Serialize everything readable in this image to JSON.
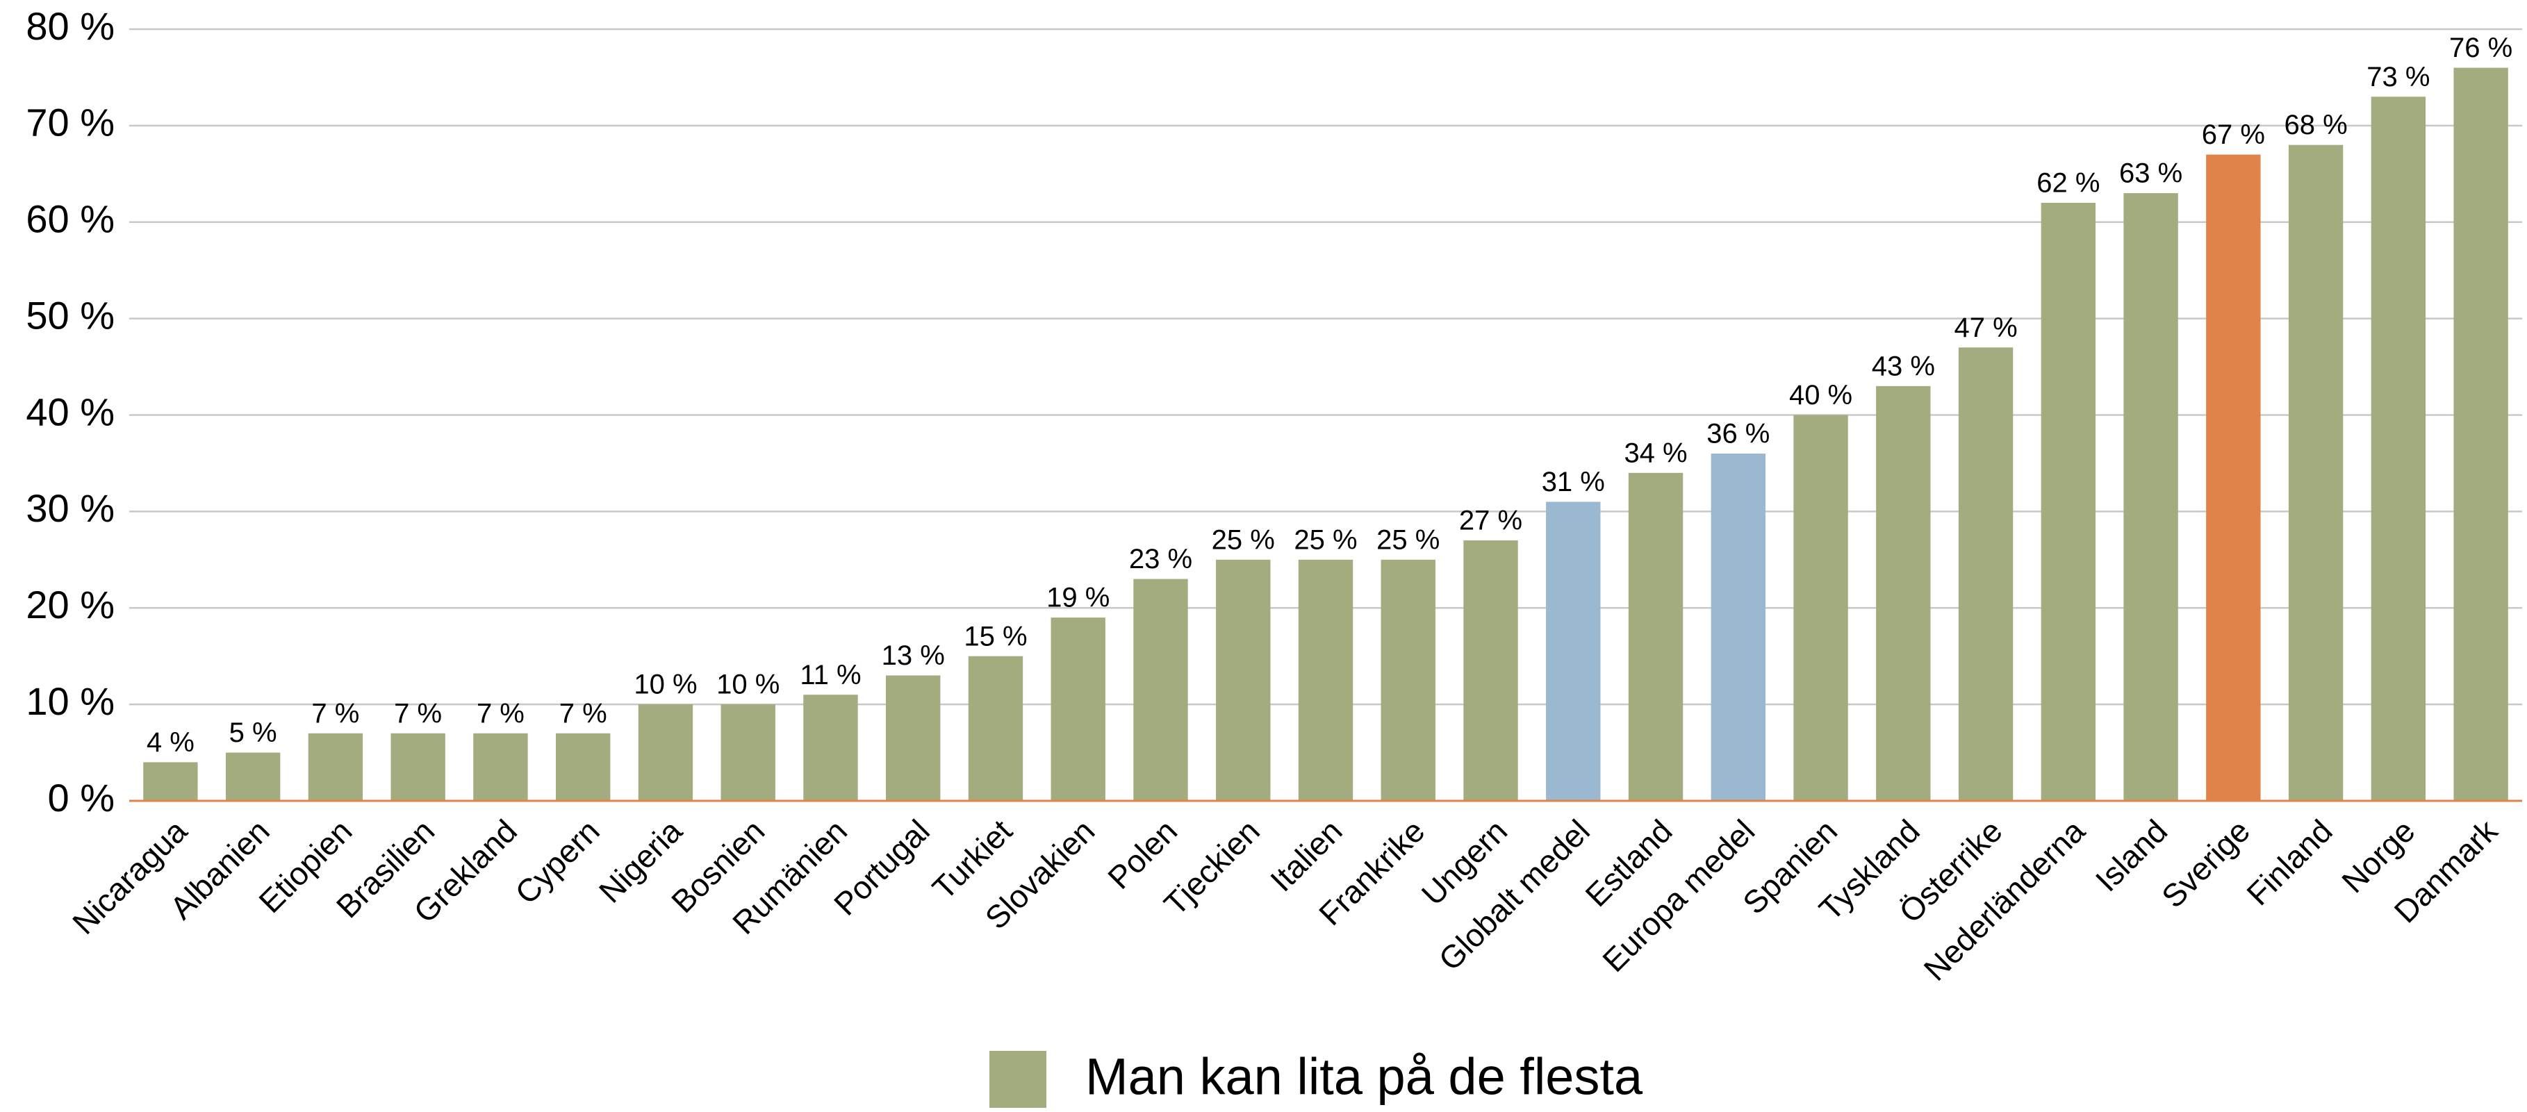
{
  "chart_data": {
    "type": "bar",
    "categories": [
      "Nicaragua",
      "Albanien",
      "Etiopien",
      "Brasilien",
      "Grekland",
      "Cypern",
      "Nigeria",
      "Bosnien",
      "Rumänien",
      "Portugal",
      "Turkiet",
      "Slovakien",
      "Polen",
      "Tjeckien",
      "Italien",
      "Frankrike",
      "Ungern",
      "Globalt medel",
      "Estland",
      "Europa medel",
      "Spanien",
      "Tyskland",
      "Österrike",
      "Nederländerna",
      "Island",
      "Sverige",
      "Finland",
      "Norge",
      "Danmark"
    ],
    "series": [
      {
        "name": "Man kan lita på de flesta",
        "color": "#a3ac7f",
        "values": [
          4,
          5,
          7,
          7,
          7,
          7,
          10,
          10,
          11,
          13,
          15,
          19,
          23,
          25,
          25,
          25,
          27,
          31,
          34,
          36,
          40,
          43,
          47,
          62,
          63,
          67,
          68,
          73,
          76
        ],
        "value_labels": [
          "4 %",
          "5 %",
          "7 %",
          "7 %",
          "7 %",
          "7 %",
          "10 %",
          "10 %",
          "11 %",
          "13 %",
          "15 %",
          "19 %",
          "23 %",
          "25 %",
          "25 %",
          "25 %",
          "27 %",
          "31 %",
          "34 %",
          "36 %",
          "40 %",
          "43 %",
          "47 %",
          "62 %",
          "63 %",
          "67 %",
          "68 %",
          "73 %",
          "76 %"
        ],
        "colors": [
          "#a3ac7f",
          "#a3ac7f",
          "#a3ac7f",
          "#a3ac7f",
          "#a3ac7f",
          "#a3ac7f",
          "#a3ac7f",
          "#a3ac7f",
          "#a3ac7f",
          "#a3ac7f",
          "#a3ac7f",
          "#a3ac7f",
          "#a3ac7f",
          "#a3ac7f",
          "#a3ac7f",
          "#a3ac7f",
          "#a3ac7f",
          "#9ab8cf",
          "#a3ac7f",
          "#9ab8cf",
          "#a3ac7f",
          "#a3ac7f",
          "#a3ac7f",
          "#a3ac7f",
          "#a3ac7f",
          "#e0834a",
          "#a3ac7f",
          "#a3ac7f",
          "#a3ac7f"
        ]
      }
    ],
    "ylim": [
      0,
      80
    ],
    "yticks": [
      {
        "value": 0,
        "label": "0 %"
      },
      {
        "value": 10,
        "label": "10 %"
      },
      {
        "value": 20,
        "label": "20 %"
      },
      {
        "value": 30,
        "label": "30 %"
      },
      {
        "value": 40,
        "label": "40 %"
      },
      {
        "value": 50,
        "label": "50 %"
      },
      {
        "value": 60,
        "label": "60 %"
      },
      {
        "value": 70,
        "label": "70 %"
      },
      {
        "value": 80,
        "label": "80 %"
      }
    ],
    "grid": true,
    "legend": "bottom",
    "axis_color": "#e0834a"
  }
}
